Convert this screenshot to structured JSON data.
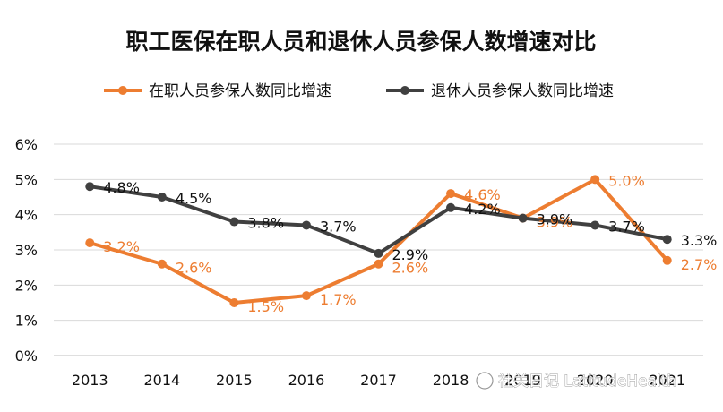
{
  "chart_data": {
    "type": "line",
    "title": "职工医保在职人员和退休人员参保人数增速对比",
    "xlabel": "",
    "ylabel": "",
    "categories": [
      "2013",
      "2014",
      "2015",
      "2016",
      "2017",
      "2018",
      "2019",
      "2020",
      "2021"
    ],
    "ylim": [
      0,
      6
    ],
    "yticks": [
      "0%",
      "1%",
      "2%",
      "3%",
      "4%",
      "5%",
      "6%"
    ],
    "grid": true,
    "legend_position": "top",
    "series": [
      {
        "name": "在职人员参保人数同比增速",
        "color": "#ED7D31",
        "values": [
          3.2,
          2.6,
          1.5,
          1.7,
          2.6,
          4.6,
          3.9,
          5.0,
          2.7
        ],
        "labels": [
          "3.2%",
          "2.6%",
          "1.5%",
          "1.7%",
          "2.6%",
          "4.6%",
          "3.9%",
          "5.0%",
          "2.7%"
        ]
      },
      {
        "name": "退休人员参保人数同比增速",
        "color": "#404040",
        "values": [
          4.8,
          4.5,
          3.8,
          3.7,
          2.9,
          4.2,
          3.9,
          3.7,
          3.3
        ],
        "labels": [
          "4.8%",
          "4.5%",
          "3.8%",
          "3.7%",
          "2.9%",
          "4.2%",
          "3.9%",
          "3.7%",
          "3.3%"
        ]
      }
    ]
  },
  "watermark": {
    "text": "社关日记 LatitudeHealth"
  }
}
